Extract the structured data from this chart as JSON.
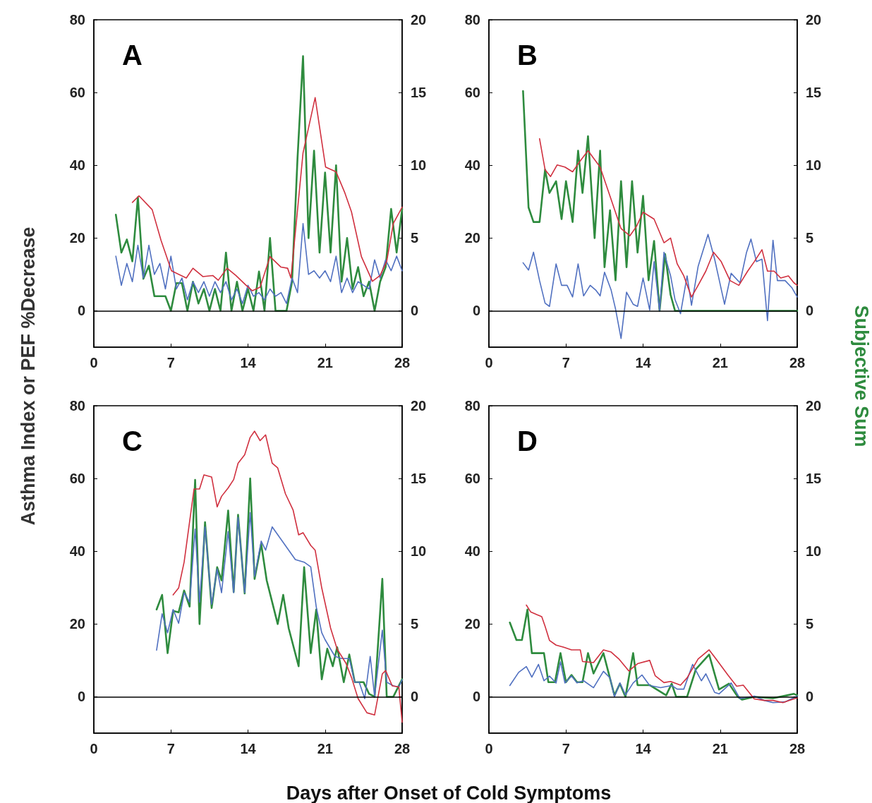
{
  "chart_data": [
    {
      "type": "line",
      "title": "A",
      "xlabel": "Days after Onset of Cold Symptoms",
      "ylabel": "Asthma Index or PEF %Decrease",
      "y2label": "Subjective Sum",
      "xlim": [
        0,
        28
      ],
      "xticks": [
        0,
        7,
        14,
        21,
        28
      ],
      "ylim": [
        -10,
        80
      ],
      "yticks": [
        0,
        20,
        40,
        60,
        80
      ],
      "y2lim": [
        -2.5,
        20
      ],
      "y2ticks": [
        0,
        5,
        10,
        15,
        20
      ],
      "marker": "none",
      "line_style": "solid",
      "ref_lines": [
        {
          "axis": "y",
          "value": 0,
          "color": "#000000"
        }
      ],
      "series": [
        {
          "color": "#2e8b3e",
          "axis": "y2",
          "x": [
            2,
            2.5,
            3,
            3.5,
            4,
            4.5,
            5,
            5.5,
            6,
            6.5,
            7,
            7.5,
            8,
            8.5,
            9,
            9.5,
            10,
            10.5,
            11,
            11.5,
            12,
            12.5,
            13,
            13.5,
            14,
            14.5,
            15,
            15.5,
            16,
            16.5,
            17,
            17.5,
            18,
            18.5,
            19,
            19.5,
            20,
            20.5,
            21,
            21.5,
            22,
            22.5,
            23,
            23.5,
            24,
            24.5,
            25,
            25.5,
            26,
            26.5,
            27,
            27.5,
            28
          ],
          "values": [
            6.6,
            4,
            4.9,
            3.4,
            7.8,
            2.2,
            3.1,
            1,
            1,
            1,
            0,
            1.9,
            1.9,
            0,
            2,
            0.5,
            1.5,
            0,
            1.5,
            0,
            4,
            0,
            2,
            0,
            1.5,
            0,
            2.7,
            0,
            5,
            0,
            0,
            0,
            2,
            10.5,
            17.5,
            5,
            11,
            4,
            9.5,
            4,
            10,
            2,
            5,
            1.5,
            3,
            1,
            2,
            0,
            2,
            3,
            7,
            4,
            7
          ]
        },
        {
          "color": "#5070c0",
          "axis": "y",
          "x": [
            2,
            2.5,
            3,
            3.5,
            4,
            4.5,
            5,
            5.5,
            6,
            6.5,
            7,
            7.5,
            8,
            8.5,
            9,
            9.5,
            10,
            10.5,
            11,
            11.5,
            12,
            12.5,
            13,
            13.5,
            14,
            14.5,
            15,
            15.5,
            16,
            16.5,
            17,
            17.5,
            18,
            18.5,
            19,
            19.5,
            20,
            20.5,
            21,
            21.5,
            22,
            22.5,
            23,
            23.5,
            24,
            24.5,
            25,
            25.5,
            26,
            26.5,
            27,
            27.5,
            28
          ],
          "values": [
            15,
            7,
            13,
            8,
            18,
            9,
            18,
            10,
            13,
            6,
            15,
            6,
            9,
            3,
            8,
            5,
            8,
            4,
            8,
            5,
            8,
            3,
            6,
            2,
            7,
            4,
            5,
            3,
            6,
            4,
            5,
            2,
            9,
            5,
            24,
            10,
            11,
            9,
            11,
            8,
            15,
            5,
            9,
            5,
            8,
            7,
            6,
            14,
            9,
            14,
            11,
            15,
            11
          ]
        },
        {
          "color": "#d0303f",
          "axis": "y",
          "x": [
            3.5,
            4.1,
            5.3,
            6.1,
            7.05,
            8.4,
            9,
            9.9,
            10.8,
            11.3,
            12.1,
            12.9,
            13.8,
            14.4,
            15.1,
            16,
            17,
            17.6,
            17.9,
            19,
            20.1,
            21.05,
            22,
            22.8,
            23.4,
            24.3,
            25.3,
            26,
            26.6,
            27.2,
            28
          ],
          "values": [
            29.8,
            31.6,
            27.8,
            19.4,
            11,
            9,
            11.7,
            9.4,
            9.7,
            8.4,
            11.7,
            9.7,
            7.1,
            5.5,
            6.5,
            14.9,
            12,
            11.7,
            9,
            43.4,
            58.6,
            39.5,
            38.2,
            32.4,
            27.2,
            14.9,
            8.1,
            9.7,
            13.6,
            24,
            28.5
          ]
        }
      ]
    },
    {
      "type": "line",
      "title": "B",
      "xlim": [
        0,
        28
      ],
      "xticks": [
        0,
        7,
        14,
        21,
        28
      ],
      "ylim": [
        -10,
        80
      ],
      "yticks": [
        0,
        20,
        40,
        60,
        80
      ],
      "y2lim": [
        -2.5,
        20
      ],
      "y2ticks": [
        0,
        5,
        10,
        15,
        20
      ],
      "marker": "none",
      "line_style": "solid",
      "ref_lines": [
        {
          "axis": "y",
          "value": 0,
          "color": "#000000"
        }
      ],
      "series": [
        {
          "color": "#2e8b3e",
          "axis": "y2",
          "x": [
            3.1,
            3.6,
            4.05,
            4.6,
            5.1,
            5.5,
            6.1,
            6.6,
            7,
            7.6,
            8.1,
            8.5,
            9,
            9.6,
            10.1,
            10.5,
            11,
            11.5,
            12,
            12.5,
            13,
            13.5,
            14,
            14.5,
            15,
            15.5,
            16,
            16.5,
            16.9,
            28
          ],
          "values": [
            15.1,
            7.1,
            6.1,
            6.1,
            9.7,
            8.1,
            8.9,
            6.3,
            8.9,
            6.1,
            11,
            8.1,
            12,
            5,
            11,
            3,
            6.9,
            2.1,
            8.9,
            3,
            8.9,
            4,
            7.9,
            2.1,
            4.8,
            0,
            3.9,
            1.1,
            0,
            0
          ]
        },
        {
          "color": "#5070c0",
          "axis": "y",
          "x": [
            3.1,
            3.6,
            4.05,
            4.6,
            5.1,
            5.5,
            6.1,
            6.6,
            7.1,
            7.6,
            8.1,
            8.6,
            9.2,
            9.7,
            10.1,
            10.5,
            11.1,
            11.5,
            12,
            12.5,
            13.1,
            13.5,
            14,
            14.6,
            15,
            15.5,
            15.9,
            16.5,
            16.9,
            17.4,
            18,
            18.4,
            19,
            19.9,
            20.5,
            21.4,
            22,
            22.8,
            23.4,
            23.8,
            24.3,
            24.8,
            25.3,
            25.8,
            26.2,
            26.9,
            27.5,
            28
          ],
          "values": [
            13.2,
            11.2,
            16.1,
            8.3,
            2.1,
            1.2,
            12.9,
            7,
            7,
            3.8,
            12.9,
            4.1,
            7,
            5.7,
            4.1,
            10.6,
            5.7,
            0.5,
            -7.6,
            5.1,
            1.8,
            1.2,
            9,
            0.2,
            13.5,
            0,
            16.1,
            9.6,
            3.1,
            -0.8,
            9.6,
            1.5,
            12.2,
            21,
            14.2,
            1.8,
            10.3,
            7.7,
            16.1,
            19.7,
            13.5,
            14.2,
            -2.7,
            19.4,
            8.3,
            8.3,
            6.4,
            3.8
          ]
        },
        {
          "color": "#d0303f",
          "axis": "y",
          "x": [
            4.6,
            5.1,
            5.6,
            6.2,
            6.9,
            7.6,
            8.2,
            9,
            10.1,
            11.2,
            12,
            12.8,
            13.4,
            14,
            15,
            15.9,
            16.5,
            17.1,
            17.7,
            18.4,
            19,
            19.7,
            20.4,
            21.1,
            21.9,
            22.7,
            23.5,
            24.1,
            24.8,
            25.3,
            25.9,
            26.5,
            27.2,
            27.7,
            28
          ],
          "values": [
            47.3,
            38.8,
            36.9,
            40.1,
            39.5,
            38.2,
            40.8,
            44,
            39.5,
            29.7,
            22.6,
            20.6,
            23.2,
            27.1,
            25.2,
            18.7,
            20,
            12.9,
            9.6,
            3.8,
            7,
            10.9,
            16.1,
            13.5,
            8.3,
            7,
            10.9,
            13.5,
            16.8,
            10.9,
            10.9,
            9,
            9.6,
            7.7,
            7
          ]
        }
      ]
    },
    {
      "type": "line",
      "title": "C",
      "xlim": [
        0,
        28
      ],
      "xticks": [
        0,
        7,
        14,
        21,
        28
      ],
      "ylim": [
        -10,
        80
      ],
      "yticks": [
        0,
        20,
        40,
        60,
        80
      ],
      "y2lim": [
        -2.5,
        20
      ],
      "y2ticks": [
        0,
        5,
        10,
        15,
        20
      ],
      "marker": "none",
      "line_style": "solid",
      "ref_lines": [
        {
          "axis": "y",
          "value": 0,
          "color": "#000000"
        }
      ],
      "series": [
        {
          "color": "#2e8b3e",
          "axis": "y2",
          "x": [
            5.7,
            6.2,
            6.7,
            7.2,
            7.7,
            8.2,
            8.7,
            9.2,
            9.6,
            10.1,
            10.7,
            11.2,
            11.6,
            12.2,
            12.7,
            13.1,
            13.7,
            14.2,
            14.6,
            15.2,
            15.7,
            16.7,
            17.2,
            17.7,
            18.6,
            19.1,
            19.7,
            20.2,
            20.7,
            21.2,
            21.7,
            22.1,
            22.7,
            23.2,
            23.7,
            24.5,
            25,
            25.5,
            26.2,
            26.6,
            27.2,
            28
          ],
          "values": [
            6,
            7,
            3,
            5.9,
            5.8,
            7.3,
            6.2,
            14.9,
            5,
            12,
            6.1,
            8.9,
            8,
            12.8,
            7.2,
            12.5,
            7.1,
            15,
            8.1,
            10.5,
            8,
            5,
            7,
            4.7,
            2.1,
            8.9,
            3,
            6,
            1.2,
            3.3,
            2.1,
            3.4,
            1,
            2.9,
            1,
            1,
            0.2,
            0,
            8.1,
            0,
            0,
            1.2
          ]
        },
        {
          "color": "#5070c0",
          "axis": "y",
          "x": [
            5.7,
            6.2,
            6.7,
            7.2,
            7.7,
            8.2,
            8.7,
            9.2,
            9.6,
            10.1,
            10.7,
            11.2,
            11.6,
            12.2,
            12.7,
            13.1,
            13.7,
            14.2,
            14.6,
            15.2,
            15.6,
            16.2,
            18.3,
            19.1,
            19.7,
            20.2,
            20.7,
            21,
            21.9,
            22.5,
            23.2,
            23.7,
            24.1,
            24.6,
            25.1,
            25.5,
            26.2,
            26.6,
            27.2,
            27.7,
            28
          ],
          "values": [
            12.8,
            22.8,
            17.6,
            24,
            20.2,
            28.6,
            26,
            46.1,
            26,
            46.7,
            25.4,
            35.1,
            28.6,
            45.4,
            28.6,
            49.3,
            28.6,
            50.6,
            33.1,
            42.8,
            40.3,
            46.7,
            37.7,
            37,
            35.7,
            24.7,
            17.6,
            15.7,
            11.1,
            10.5,
            10.5,
            4,
            4,
            -0.5,
            11.1,
            0.1,
            18.3,
            4,
            3,
            2.7,
            4.7
          ]
        },
        {
          "color": "#d0303f",
          "axis": "y",
          "x": [
            7.2,
            7.7,
            8.2,
            9.1,
            9.6,
            10,
            10.7,
            11.2,
            11.6,
            12.2,
            12.7,
            13.1,
            13.7,
            14.2,
            14.6,
            15.1,
            15.6,
            16.2,
            16.7,
            17.4,
            18.1,
            18.6,
            19,
            19.7,
            20.1,
            20.7,
            21.5,
            22.1,
            22.9,
            23.4,
            24,
            24.8,
            25.5,
            26.2,
            26.5,
            27.1,
            27.7,
            28
          ],
          "values": [
            28,
            29.9,
            37,
            57.1,
            57.1,
            61,
            60.4,
            52.2,
            55.1,
            57.4,
            59.7,
            64.2,
            66.5,
            71.3,
            73,
            70.4,
            72,
            64.2,
            62.9,
            55.8,
            51.3,
            44.5,
            45.1,
            41.6,
            40.3,
            29.9,
            18.9,
            13.1,
            9.2,
            5.3,
            -0.5,
            -4.4,
            -5,
            6.3,
            7.2,
            3,
            2.7,
            -7
          ]
        }
      ]
    },
    {
      "type": "line",
      "title": "D",
      "xlim": [
        0,
        28
      ],
      "xticks": [
        0,
        7,
        14,
        21,
        28
      ],
      "ylim": [
        -10,
        80
      ],
      "yticks": [
        0,
        20,
        40,
        60,
        80
      ],
      "y2lim": [
        -2.5,
        20
      ],
      "y2ticks": [
        0,
        5,
        10,
        15,
        20
      ],
      "marker": "none",
      "line_style": "solid",
      "ref_lines": [
        {
          "axis": "y",
          "value": 0,
          "color": "#000000"
        }
      ],
      "series": [
        {
          "color": "#2e8b3e",
          "axis": "y2",
          "x": [
            1.9,
            2.5,
            3,
            3.5,
            3.9,
            5,
            5.4,
            6,
            6.5,
            7,
            7.5,
            8,
            8.5,
            9,
            9.5,
            10.4,
            11.4,
            11.9,
            12.4,
            13.1,
            13.5,
            14.6,
            16.1,
            16.6,
            17,
            18,
            18.8,
            20,
            20.9,
            21.8,
            22.6,
            23,
            24.1,
            25.8,
            27.1,
            27.7,
            28
          ],
          "values": [
            5.1,
            3.9,
            3.9,
            6,
            3,
            3,
            1,
            1,
            3,
            1,
            1.5,
            1,
            1,
            3,
            1.6,
            3,
            0.1,
            0.9,
            0,
            3,
            0.8,
            0.8,
            0.1,
            0.9,
            0,
            0,
            1.9,
            2.9,
            0.5,
            0.9,
            0,
            -0.2,
            0,
            -0.1,
            0.1,
            0.2,
            0.1
          ]
        },
        {
          "color": "#5070c0",
          "axis": "y",
          "x": [
            1.9,
            2.7,
            3.4,
            3.9,
            4.5,
            5,
            5.5,
            6.1,
            6.5,
            6.9,
            7.5,
            8,
            8.6,
            9.5,
            10.4,
            11,
            11.4,
            11.9,
            12.4,
            13.1,
            13.9,
            14.6,
            15.6,
            16.6,
            17.1,
            17.7,
            18.5,
            19.3,
            19.7,
            20.5,
            20.9,
            22,
            22.8,
            24.1,
            25,
            25.8,
            26.9,
            28
          ],
          "values": [
            3.1,
            6.7,
            8.3,
            5.4,
            8.9,
            4.4,
            5.7,
            3.8,
            9.6,
            3.8,
            5.7,
            3.8,
            4.4,
            2.5,
            7,
            5.2,
            0,
            3.8,
            0.5,
            3.8,
            6,
            3.1,
            2.5,
            3.1,
            2.1,
            2.1,
            8.9,
            4.4,
            6.3,
            1.2,
            0.8,
            3.8,
            -0.5,
            0.2,
            -1,
            -1.6,
            -1.4,
            0.2
          ]
        },
        {
          "color": "#d0303f",
          "axis": "y",
          "x": [
            3.4,
            3.8,
            4.8,
            5.1,
            5.5,
            6.1,
            6.8,
            7.5,
            8.3,
            8.5,
            9.5,
            10.4,
            11.1,
            11.8,
            12.7,
            13.5,
            14.6,
            15.1,
            15.9,
            16.5,
            17.4,
            18,
            19,
            20,
            20.8,
            21.7,
            22.5,
            23.1,
            24.1,
            25,
            25.8,
            26.7,
            27.3,
            28
          ],
          "values": [
            25.2,
            23.3,
            22,
            19.4,
            15.5,
            14.2,
            13.6,
            12.9,
            12.9,
            9.7,
            9.4,
            12.9,
            12.3,
            10.4,
            7.1,
            9.1,
            10,
            5.8,
            3.9,
            4.2,
            3.2,
            5.2,
            10.4,
            12.9,
            9.7,
            6,
            2.9,
            3.2,
            -0.6,
            -1,
            -1,
            -1.6,
            -1,
            -0.3
          ]
        }
      ]
    }
  ]
}
